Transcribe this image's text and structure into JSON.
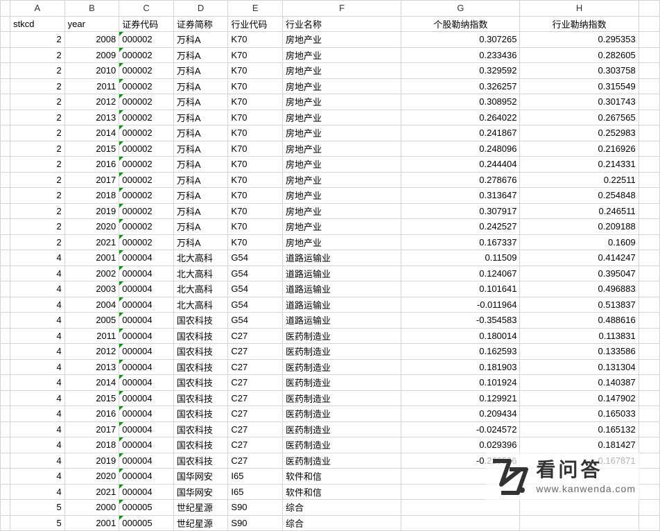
{
  "columns": {
    "letters": [
      "A",
      "B",
      "C",
      "D",
      "E",
      "F",
      "G",
      "H",
      ""
    ],
    "widths": [
      78,
      78,
      78,
      78,
      78,
      170,
      170,
      170,
      30
    ]
  },
  "header_row": {
    "stkcd": "stkcd",
    "year": "year",
    "sec_code": "证券代码",
    "sec_name": "证券简称",
    "ind_code": "行业代码",
    "ind_name": "行业名称",
    "stock_lerner": "个股勒纳指数",
    "ind_lerner": "行业勒纳指数"
  },
  "rows": [
    {
      "stkcd": "2",
      "year": "2008",
      "sec_code": "000002",
      "sec_name": "万科A",
      "ind_code": "K70",
      "ind_name": "房地产业",
      "g": "0.307265",
      "h": "0.295353"
    },
    {
      "stkcd": "2",
      "year": "2009",
      "sec_code": "000002",
      "sec_name": "万科A",
      "ind_code": "K70",
      "ind_name": "房地产业",
      "g": "0.233436",
      "h": "0.282605"
    },
    {
      "stkcd": "2",
      "year": "2010",
      "sec_code": "000002",
      "sec_name": "万科A",
      "ind_code": "K70",
      "ind_name": "房地产业",
      "g": "0.329592",
      "h": "0.303758"
    },
    {
      "stkcd": "2",
      "year": "2011",
      "sec_code": "000002",
      "sec_name": "万科A",
      "ind_code": "K70",
      "ind_name": "房地产业",
      "g": "0.326257",
      "h": "0.315549"
    },
    {
      "stkcd": "2",
      "year": "2012",
      "sec_code": "000002",
      "sec_name": "万科A",
      "ind_code": "K70",
      "ind_name": "房地产业",
      "g": "0.308952",
      "h": "0.301743"
    },
    {
      "stkcd": "2",
      "year": "2013",
      "sec_code": "000002",
      "sec_name": "万科A",
      "ind_code": "K70",
      "ind_name": "房地产业",
      "g": "0.264022",
      "h": "0.267565"
    },
    {
      "stkcd": "2",
      "year": "2014",
      "sec_code": "000002",
      "sec_name": "万科A",
      "ind_code": "K70",
      "ind_name": "房地产业",
      "g": "0.241867",
      "h": "0.252983"
    },
    {
      "stkcd": "2",
      "year": "2015",
      "sec_code": "000002",
      "sec_name": "万科A",
      "ind_code": "K70",
      "ind_name": "房地产业",
      "g": "0.248096",
      "h": "0.216926"
    },
    {
      "stkcd": "2",
      "year": "2016",
      "sec_code": "000002",
      "sec_name": "万科A",
      "ind_code": "K70",
      "ind_name": "房地产业",
      "g": "0.244404",
      "h": "0.214331"
    },
    {
      "stkcd": "2",
      "year": "2017",
      "sec_code": "000002",
      "sec_name": "万科A",
      "ind_code": "K70",
      "ind_name": "房地产业",
      "g": "0.278676",
      "h": "0.22511"
    },
    {
      "stkcd": "2",
      "year": "2018",
      "sec_code": "000002",
      "sec_name": "万科A",
      "ind_code": "K70",
      "ind_name": "房地产业",
      "g": "0.313647",
      "h": "0.254848"
    },
    {
      "stkcd": "2",
      "year": "2019",
      "sec_code": "000002",
      "sec_name": "万科A",
      "ind_code": "K70",
      "ind_name": "房地产业",
      "g": "0.307917",
      "h": "0.246511"
    },
    {
      "stkcd": "2",
      "year": "2020",
      "sec_code": "000002",
      "sec_name": "万科A",
      "ind_code": "K70",
      "ind_name": "房地产业",
      "g": "0.242527",
      "h": "0.209188"
    },
    {
      "stkcd": "2",
      "year": "2021",
      "sec_code": "000002",
      "sec_name": "万科A",
      "ind_code": "K70",
      "ind_name": "房地产业",
      "g": "0.167337",
      "h": "0.1609"
    },
    {
      "stkcd": "4",
      "year": "2001",
      "sec_code": "000004",
      "sec_name": "北大高科",
      "ind_code": "G54",
      "ind_name": "道路运输业",
      "g": "0.11509",
      "h": "0.414247"
    },
    {
      "stkcd": "4",
      "year": "2002",
      "sec_code": "000004",
      "sec_name": "北大高科",
      "ind_code": "G54",
      "ind_name": "道路运输业",
      "g": "0.124067",
      "h": "0.395047"
    },
    {
      "stkcd": "4",
      "year": "2003",
      "sec_code": "000004",
      "sec_name": "北大高科",
      "ind_code": "G54",
      "ind_name": "道路运输业",
      "g": "0.101641",
      "h": "0.496883"
    },
    {
      "stkcd": "4",
      "year": "2004",
      "sec_code": "000004",
      "sec_name": "北大高科",
      "ind_code": "G54",
      "ind_name": "道路运输业",
      "g": "-0.011964",
      "h": "0.513837"
    },
    {
      "stkcd": "4",
      "year": "2005",
      "sec_code": "000004",
      "sec_name": "国农科技",
      "ind_code": "G54",
      "ind_name": "道路运输业",
      "g": "-0.354583",
      "h": "0.488616"
    },
    {
      "stkcd": "4",
      "year": "2011",
      "sec_code": "000004",
      "sec_name": "国农科技",
      "ind_code": "C27",
      "ind_name": "医药制造业",
      "g": "0.180014",
      "h": "0.113831"
    },
    {
      "stkcd": "4",
      "year": "2012",
      "sec_code": "000004",
      "sec_name": "国农科技",
      "ind_code": "C27",
      "ind_name": "医药制造业",
      "g": "0.162593",
      "h": "0.133586"
    },
    {
      "stkcd": "4",
      "year": "2013",
      "sec_code": "000004",
      "sec_name": "国农科技",
      "ind_code": "C27",
      "ind_name": "医药制造业",
      "g": "0.181903",
      "h": "0.131304"
    },
    {
      "stkcd": "4",
      "year": "2014",
      "sec_code": "000004",
      "sec_name": "国农科技",
      "ind_code": "C27",
      "ind_name": "医药制造业",
      "g": "0.101924",
      "h": "0.140387"
    },
    {
      "stkcd": "4",
      "year": "2015",
      "sec_code": "000004",
      "sec_name": "国农科技",
      "ind_code": "C27",
      "ind_name": "医药制造业",
      "g": "0.129921",
      "h": "0.147902"
    },
    {
      "stkcd": "4",
      "year": "2016",
      "sec_code": "000004",
      "sec_name": "国农科技",
      "ind_code": "C27",
      "ind_name": "医药制造业",
      "g": "0.209434",
      "h": "0.165033"
    },
    {
      "stkcd": "4",
      "year": "2017",
      "sec_code": "000004",
      "sec_name": "国农科技",
      "ind_code": "C27",
      "ind_name": "医药制造业",
      "g": "-0.024572",
      "h": "0.165132"
    },
    {
      "stkcd": "4",
      "year": "2018",
      "sec_code": "000004",
      "sec_name": "国农科技",
      "ind_code": "C27",
      "ind_name": "医药制造业",
      "g": "0.029396",
      "h": "0.181427"
    },
    {
      "stkcd": "4",
      "year": "2019",
      "sec_code": "000004",
      "sec_name": "国农科技",
      "ind_code": "C27",
      "ind_name": "医药制造业",
      "g": "-0.220586",
      "h": "0.167871"
    },
    {
      "stkcd": "4",
      "year": "2020",
      "sec_code": "000004",
      "sec_name": "国华网安",
      "ind_code": "I65",
      "ind_name": "软件和信",
      "g": "",
      "h": ""
    },
    {
      "stkcd": "4",
      "year": "2021",
      "sec_code": "000004",
      "sec_name": "国华网安",
      "ind_code": "I65",
      "ind_name": "软件和信",
      "g": "",
      "h": ""
    },
    {
      "stkcd": "5",
      "year": "2000",
      "sec_code": "000005",
      "sec_name": "世纪星源",
      "ind_code": "S90",
      "ind_name": "综合",
      "g": "",
      "h": ""
    },
    {
      "stkcd": "5",
      "year": "2001",
      "sec_code": "000005",
      "sec_name": "世纪星源",
      "ind_code": "S90",
      "ind_name": "综合",
      "g": "",
      "h": ""
    }
  ],
  "watermark": {
    "title": "看问答",
    "url": "www.kanwenda.com",
    "logo_color": "#333333"
  },
  "styles": {
    "border_color": "#d4d4d4",
    "cell_bg": "#ffffff",
    "text_color": "#000000",
    "triangle_color": "#009900",
    "font_size": 13
  }
}
